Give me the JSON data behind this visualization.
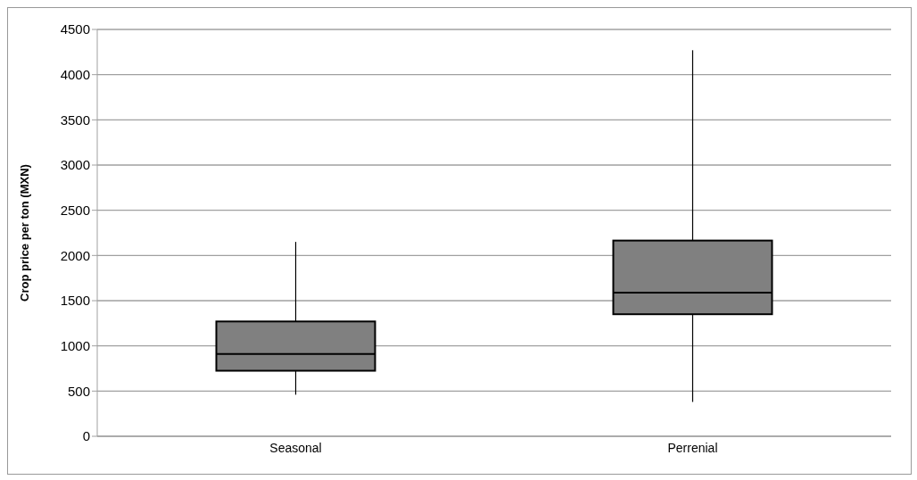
{
  "chart_data": {
    "type": "box",
    "ylabel": "Crop price per ton (MXN)",
    "categories": [
      "Seasonal",
      "Perrenial"
    ],
    "boxes": [
      {
        "low": 460,
        "q1": 725,
        "median": 910,
        "q3": 1270,
        "high": 2150
      },
      {
        "low": 380,
        "q1": 1350,
        "median": 1590,
        "q3": 2165,
        "high": 4270
      }
    ],
    "color": "#808080",
    "ylim": [
      0,
      4500
    ],
    "yticks": [
      0,
      500,
      1000,
      1500,
      2000,
      2500,
      3000,
      3500,
      4000,
      4500
    ],
    "grid": "y"
  }
}
